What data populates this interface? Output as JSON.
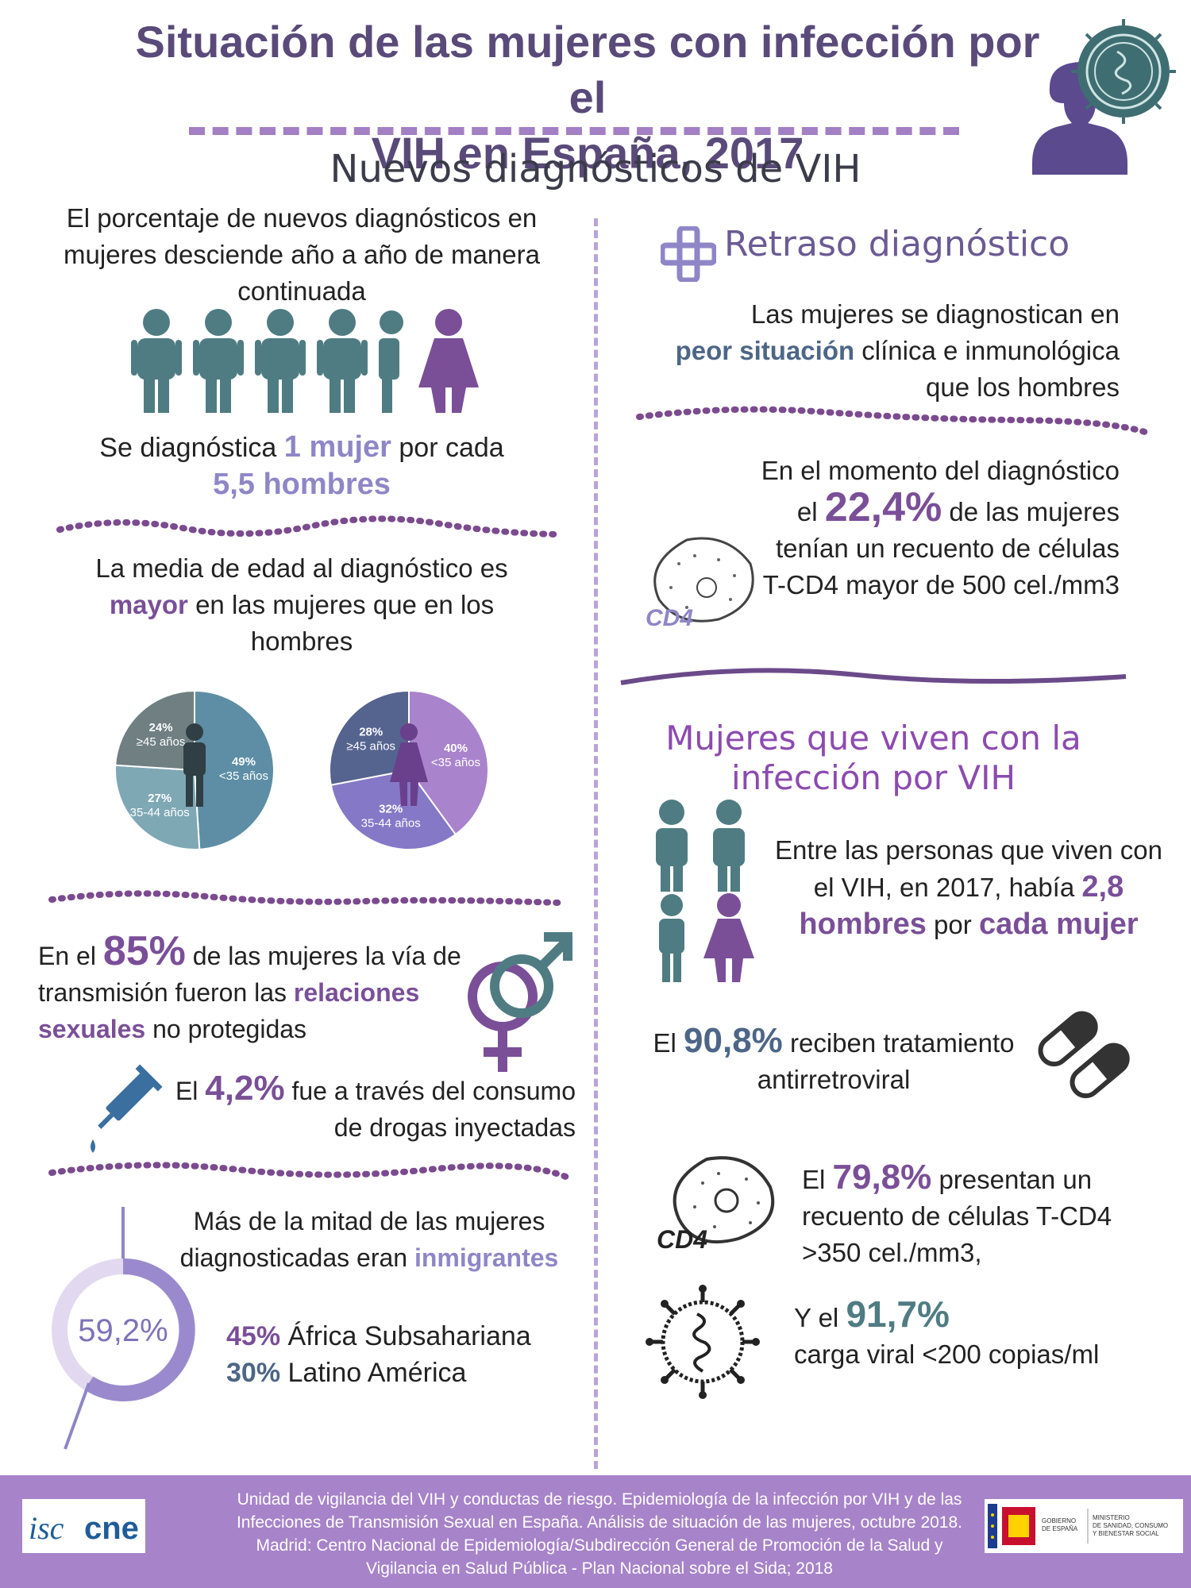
{
  "header": {
    "title_line1": "Situación de las mujeres con infección por el",
    "title_line2": "VIH en España, 2017",
    "subtitle": "Nuevos diagnósticos de VIH"
  },
  "left": {
    "intro": "El porcentaje de nuevos diagnósticos en mujeres desciende año a año de manera continuada",
    "ratio_pre": "Se diagnóstica ",
    "ratio_highlight1": "1 mujer",
    "ratio_mid": " por cada",
    "ratio_highlight2": "5,5 hombres",
    "age_pre": "La media de edad al diagnóstico es",
    "age_highlight": "mayor",
    "age_post": " en las mujeres que en los hombres",
    "transmission_pre": "En el ",
    "transmission_pct": "85%",
    "transmission_mid": " de las mujeres la vía de transmisión fueron las",
    "transmission_highlight": "relaciones sexuales",
    "transmission_post": " no protegidas",
    "drugs_pre": "El ",
    "drugs_pct": "4,2%",
    "drugs_post": " fue a través del consumo de drogas inyectadas",
    "immigrants_pre": "Más de la mitad de las mujeres diagnosticadas eran ",
    "immigrants_highlight": "inmigrantes",
    "immigrants_pct": "59,2%",
    "region1_pct": "45%",
    "region1_name": "África Subsahariana",
    "region2_pct": "30%",
    "region2_name": "Latino América"
  },
  "chart_data": [
    {
      "type": "pie",
      "series": [
        {
          "category": "<35 años",
          "value": 49
        },
        {
          "category": "35-44 años",
          "value": 27
        },
        {
          "category": "≥45 años",
          "value": 24
        }
      ],
      "colors": [
        "#5d8ea5",
        "#7fa8b5",
        "#6f7f82"
      ]
    },
    {
      "type": "pie",
      "series": [
        {
          "category": "<35 años",
          "value": 40
        },
        {
          "category": "35-44 años",
          "value": 32
        },
        {
          "category": "≥45 años",
          "value": 28
        }
      ],
      "colors": [
        "#a983cc",
        "#8578c7",
        "#55638f"
      ]
    }
  ],
  "right": {
    "delay_title": "Retraso diagnóstico",
    "delay_pre": "Las mujeres se diagnostican en",
    "delay_highlight": "peor situación",
    "delay_post": " clínica e inmunológica que los hombres",
    "cd4_pre": "En el momento del diagnóstico el ",
    "cd4_pct": "22,4%",
    "cd4_post": " de las mujeres tenían un recuento de células T-CD4 mayor de 500 cel./mm3",
    "cd4_icon_label": "CD4",
    "living_title": "Mujeres que viven con la infección por VIH",
    "living_pre": "Entre las personas que viven con el VIH, en 2017, había ",
    "living_ratio": "2,8",
    "living_highlight1": "hombres",
    "living_mid": " por ",
    "living_highlight2": "cada mujer",
    "treatment_pre": "El ",
    "treatment_pct": "90,8%",
    "treatment_post": " reciben tratamiento antirretroviral",
    "cd4b_pre": "El ",
    "cd4b_pct": "79,8%",
    "cd4b_post": " presentan un recuento de células T-CD4 >350 cel./mm3,",
    "viral_pre": "Y el ",
    "viral_pct": "91,7%",
    "viral_post": "carga viral <200 copias/ml"
  },
  "footer": {
    "citation": "Unidad de vigilancia del VIH y conductas de riesgo. Epidemiología de la infección por VIH y de las Infecciones de Transmisión Sexual en España. Análisis de situación de las mujeres, octubre 2018. Madrid: Centro Nacional de Epidemiología/Subdirección General de Promoción de la Salud y Vigilancia en Salud Pública - Plan Nacional sobre el Sida; 2018",
    "logo_left": "isciii cne",
    "logo_right_line1": "GOBIERNO DE ESPAÑA",
    "logo_right_line2": "MINISTERIO DE SANIDAD, CONSUMO Y BIENESTAR SOCIAL"
  },
  "colors": {
    "title": "#5a4a7a",
    "purple": "#7a4f98",
    "lavender": "#8f86c7",
    "teal": "#4f7c82",
    "footer": "#a783c9"
  }
}
